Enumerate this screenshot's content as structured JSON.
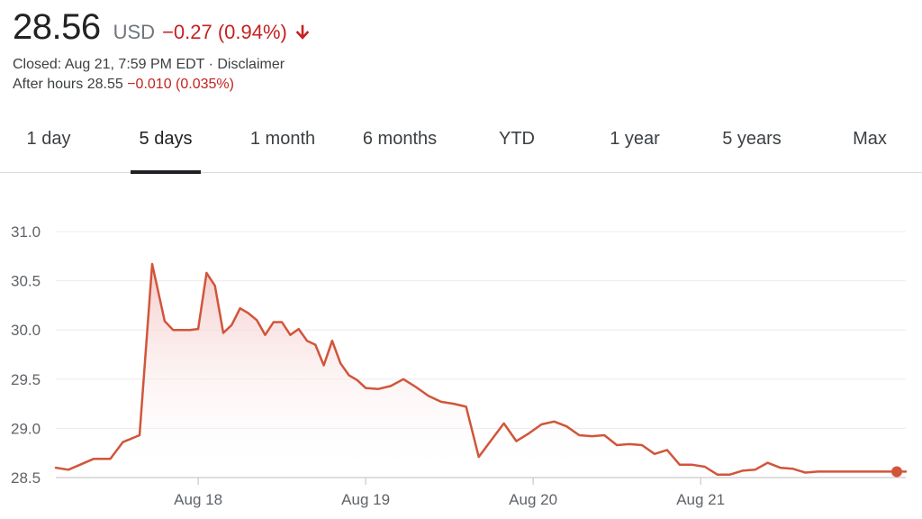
{
  "quote": {
    "price": "28.56",
    "currency": "USD",
    "change": "−0.27 (0.94%)",
    "change_direction_icon": "arrow-down-icon",
    "closed": "Closed: Aug 21, 7:59 PM EDT",
    "separator": " · ",
    "disclaimer": "Disclaimer",
    "after_hours_label": "After hours 28.55",
    "after_hours_change": "−0.010 (0.035%)"
  },
  "tabs": [
    {
      "label": "1 day"
    },
    {
      "label": "5 days"
    },
    {
      "label": "1 month"
    },
    {
      "label": "6 months"
    },
    {
      "label": "YTD"
    },
    {
      "label": "1 year"
    },
    {
      "label": "5 years"
    },
    {
      "label": "Max"
    }
  ],
  "active_tab": "5 days",
  "colors": {
    "line": "#d1553a",
    "negative": "#c5221f",
    "grid": "#ececec",
    "axis": "#bdbdbd"
  },
  "chart_data": {
    "type": "area",
    "title": "",
    "xlabel": "",
    "ylabel": "",
    "ylim": [
      28.5,
      31.0
    ],
    "yticks": [
      "31.0",
      "30.5",
      "30.0",
      "29.5",
      "29.0",
      "28.5"
    ],
    "xticks": [
      {
        "label": "Aug 18",
        "x": 4
      },
      {
        "label": "Aug 19",
        "x": 8
      },
      {
        "label": "Aug 20",
        "x": 12
      },
      {
        "label": "Aug 21",
        "x": 16
      }
    ],
    "xlim": [
      0.6,
      20.9
    ],
    "grid": true,
    "series": [
      {
        "x": [
          0.6,
          0.9,
          1.5,
          1.9,
          2.2,
          2.6,
          2.9,
          3.2,
          3.4,
          3.6,
          3.8,
          4.0,
          4.2,
          4.4,
          4.6,
          4.8,
          5.0,
          5.2,
          5.4,
          5.6,
          5.8,
          6.0,
          6.2,
          6.4,
          6.6,
          6.8,
          7.0,
          7.2,
          7.4,
          7.6,
          7.8,
          8.0,
          8.3,
          8.6,
          8.9,
          9.2,
          9.5,
          9.8,
          10.1,
          10.4,
          10.7,
          11.0,
          11.3,
          11.6,
          11.9,
          12.2,
          12.5,
          12.8,
          13.1,
          13.4,
          13.7,
          14.0,
          14.3,
          14.6,
          14.9,
          15.2,
          15.5,
          15.8,
          16.1,
          16.4,
          16.7,
          17.0,
          17.3,
          17.6,
          17.9,
          18.2,
          18.5,
          18.8,
          19.1,
          19.4,
          19.7,
          20.0,
          20.3,
          20.6,
          20.9
        ],
        "values": [
          28.6,
          28.58,
          28.69,
          28.69,
          28.86,
          28.93,
          30.67,
          30.09,
          30.0,
          30.0,
          30.0,
          30.01,
          30.58,
          30.45,
          29.97,
          30.05,
          30.22,
          30.17,
          30.1,
          29.95,
          30.08,
          30.08,
          29.95,
          30.01,
          29.89,
          29.85,
          29.64,
          29.89,
          29.66,
          29.54,
          29.49,
          29.41,
          29.4,
          29.43,
          29.5,
          29.42,
          29.33,
          29.27,
          29.25,
          29.22,
          28.71,
          28.88,
          29.05,
          28.87,
          28.95,
          29.04,
          29.07,
          29.02,
          28.93,
          28.92,
          28.93,
          28.83,
          28.84,
          28.83,
          28.74,
          28.78,
          28.63,
          28.63,
          28.61,
          28.53,
          28.53,
          28.57,
          28.58,
          28.65,
          28.6,
          28.59,
          28.55,
          28.56,
          28.56,
          28.56,
          28.56,
          28.56,
          28.56,
          28.56,
          28.56
        ]
      }
    ]
  }
}
